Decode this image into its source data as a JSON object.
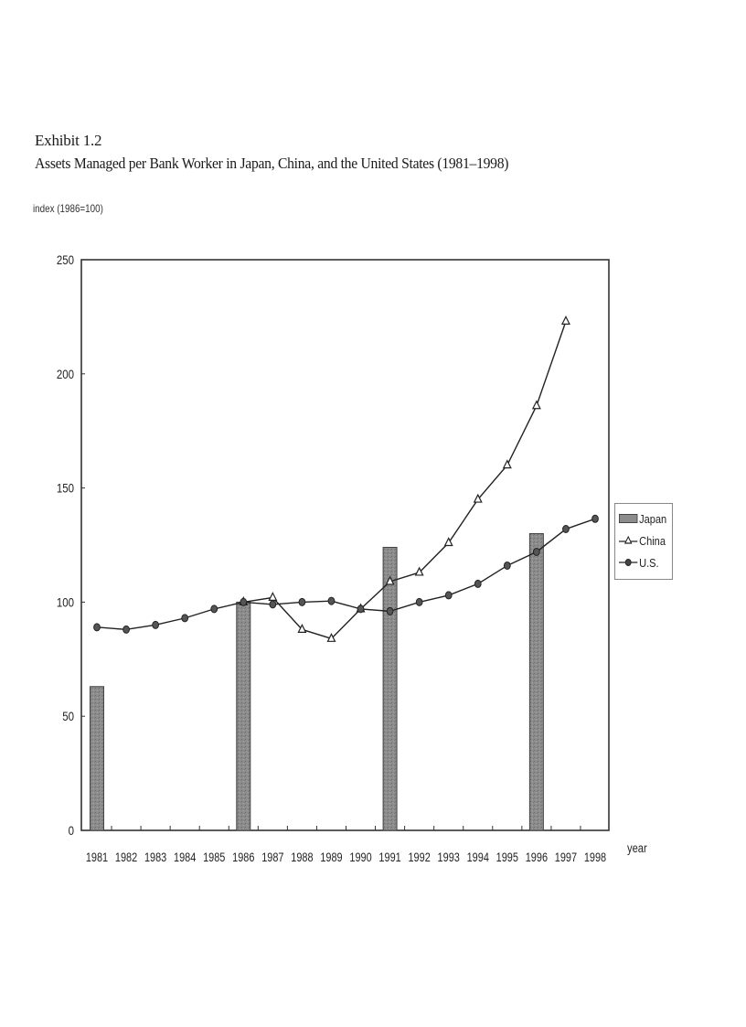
{
  "header": {
    "exhibit": "Exhibit 1.2",
    "title": "Assets Managed per Bank Worker in Japan, China, and the United States (1981–1998)",
    "y_axis_label": "index (1986=100)"
  },
  "legend": {
    "items": [
      {
        "label": "Japan",
        "symbol": "bar"
      },
      {
        "label": "China",
        "symbol": "triangle-line"
      },
      {
        "label": "U.S.",
        "symbol": "circle-line"
      }
    ]
  },
  "colors": {
    "bar_fill": "#8c8c8c",
    "bar_edge": "#444444",
    "line": "#222222",
    "axis": "#333333"
  },
  "chart_data": {
    "type": "bar+line",
    "title": "Assets Managed per Bank Worker in Japan, China, and the United States (1981–1998)",
    "xlabel": "year",
    "ylabel": "index (1986=100)",
    "ylim": [
      0,
      250
    ],
    "yticks": [
      0,
      50,
      100,
      150,
      200,
      250
    ],
    "grid": false,
    "legend_position": "right",
    "categories": [
      "1981",
      "1982",
      "1983",
      "1984",
      "1985",
      "1986",
      "1987",
      "1988",
      "1989",
      "1990",
      "1991",
      "1992",
      "1993",
      "1994",
      "1995",
      "1996",
      "1997",
      "1998"
    ],
    "series": [
      {
        "name": "Japan",
        "type": "bar",
        "values": [
          63,
          null,
          null,
          null,
          null,
          100,
          null,
          null,
          null,
          null,
          124,
          null,
          null,
          null,
          null,
          130,
          null,
          null
        ]
      },
      {
        "name": "China",
        "type": "line",
        "marker": "triangle",
        "values": [
          null,
          null,
          null,
          null,
          null,
          100,
          102,
          88,
          84,
          97,
          109,
          113,
          126,
          145,
          160,
          186,
          223,
          null
        ]
      },
      {
        "name": "U.S.",
        "type": "line",
        "marker": "circle",
        "values": [
          89,
          88,
          90,
          93,
          97,
          100,
          99,
          100,
          100.5,
          97,
          96,
          100,
          103,
          108,
          116,
          122,
          132,
          136.5
        ]
      }
    ]
  }
}
